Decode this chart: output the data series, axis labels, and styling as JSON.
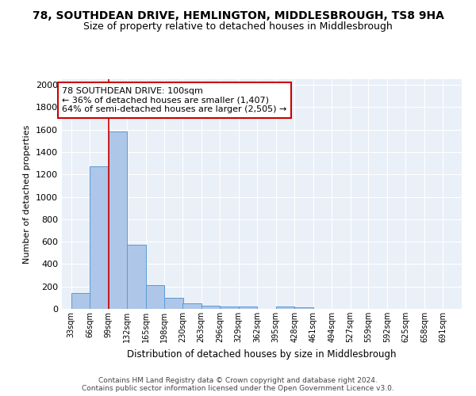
{
  "title1": "78, SOUTHDEAN DRIVE, HEMLINGTON, MIDDLESBROUGH, TS8 9HA",
  "title2": "Size of property relative to detached houses in Middlesbrough",
  "xlabel": "Distribution of detached houses by size in Middlesbrough",
  "ylabel": "Number of detached properties",
  "bins_left": [
    33,
    66,
    99,
    132,
    165,
    198,
    230,
    263,
    296,
    329,
    362,
    395,
    428,
    461,
    494,
    527,
    559,
    592,
    625,
    658
  ],
  "bin_width": 33,
  "counts": [
    140,
    1270,
    1580,
    570,
    215,
    100,
    50,
    30,
    20,
    20,
    0,
    20,
    15,
    0,
    0,
    0,
    0,
    0,
    0,
    0
  ],
  "bar_color": "#aec6e8",
  "bar_edge_color": "#5b9bd5",
  "property_size": 100,
  "vline_color": "#cc0000",
  "annotation_text": "78 SOUTHDEAN DRIVE: 100sqm\n← 36% of detached houses are smaller (1,407)\n64% of semi-detached houses are larger (2,505) →",
  "annotation_box_color": "white",
  "annotation_box_edge": "#cc0000",
  "ylim": [
    0,
    2050
  ],
  "xlim_left": 16.5,
  "xlim_right": 724,
  "yticks": [
    0,
    200,
    400,
    600,
    800,
    1000,
    1200,
    1400,
    1600,
    1800,
    2000
  ],
  "xtick_labels": [
    "33sqm",
    "66sqm",
    "99sqm",
    "132sqm",
    "165sqm",
    "198sqm",
    "230sqm",
    "263sqm",
    "296sqm",
    "329sqm",
    "362sqm",
    "395sqm",
    "428sqm",
    "461sqm",
    "494sqm",
    "527sqm",
    "559sqm",
    "592sqm",
    "625sqm",
    "658sqm",
    "691sqm"
  ],
  "xtick_positions": [
    33,
    66,
    99,
    132,
    165,
    198,
    230,
    263,
    296,
    329,
    362,
    395,
    428,
    461,
    494,
    527,
    559,
    592,
    625,
    658,
    691
  ],
  "bg_color": "#eaf0f8",
  "footer": "Contains HM Land Registry data © Crown copyright and database right 2024.\nContains public sector information licensed under the Open Government Licence v3.0.",
  "title1_fontsize": 10,
  "title2_fontsize": 9,
  "xlabel_fontsize": 8.5,
  "ylabel_fontsize": 8,
  "annotation_fontsize": 8,
  "tick_fontsize": 7
}
